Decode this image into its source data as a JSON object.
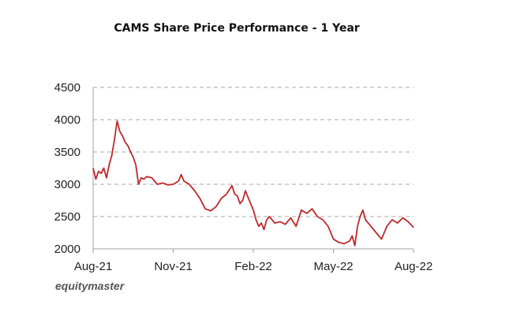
{
  "chart_data": {
    "type": "line",
    "title": "CAMS Share Price Performance - 1 Year",
    "xlabel": "",
    "ylabel": "",
    "ylim": [
      2000,
      4500
    ],
    "yticks": [
      "4500",
      "4000",
      "3500",
      "3000",
      "2500",
      "2000"
    ],
    "ytick_values": [
      4500,
      4000,
      3500,
      3000,
      2500,
      2000
    ],
    "xticks": [
      "Aug-21",
      "Nov-21",
      "Feb-22",
      "May-22",
      "Aug-22"
    ],
    "x_range": [
      0,
      12
    ],
    "grid": "horizontal dashed",
    "series": [
      {
        "name": "CAMS",
        "color": "#c0282a",
        "x": [
          0,
          0.1,
          0.2,
          0.3,
          0.4,
          0.5,
          0.6,
          0.7,
          0.8,
          0.9,
          1.0,
          1.1,
          1.2,
          1.3,
          1.4,
          1.5,
          1.6,
          1.7,
          1.8,
          1.9,
          2.0,
          2.2,
          2.4,
          2.6,
          2.8,
          3.0,
          3.2,
          3.3,
          3.4,
          3.6,
          3.8,
          4.0,
          4.2,
          4.4,
          4.6,
          4.8,
          5.0,
          5.2,
          5.3,
          5.4,
          5.5,
          5.6,
          5.7,
          5.8,
          6.0,
          6.1,
          6.2,
          6.3,
          6.4,
          6.5,
          6.6,
          6.8,
          7.0,
          7.2,
          7.4,
          7.6,
          7.8,
          8.0,
          8.2,
          8.4,
          8.6,
          8.8,
          9.0,
          9.2,
          9.4,
          9.6,
          9.7,
          9.8,
          9.9,
          10.0,
          10.1,
          10.2,
          10.4,
          10.6,
          10.8,
          11.0,
          11.2,
          11.4,
          11.6,
          11.8,
          12.0
        ],
        "values": [
          3250,
          3080,
          3200,
          3170,
          3250,
          3100,
          3300,
          3450,
          3700,
          3980,
          3820,
          3750,
          3650,
          3600,
          3500,
          3420,
          3300,
          3000,
          3100,
          3080,
          3120,
          3100,
          3000,
          3020,
          2990,
          3000,
          3050,
          3150,
          3050,
          3000,
          2900,
          2780,
          2620,
          2590,
          2650,
          2780,
          2850,
          2980,
          2850,
          2820,
          2700,
          2750,
          2900,
          2800,
          2600,
          2450,
          2350,
          2400,
          2300,
          2450,
          2500,
          2400,
          2420,
          2380,
          2480,
          2350,
          2600,
          2550,
          2620,
          2500,
          2450,
          2350,
          2150,
          2100,
          2080,
          2120,
          2200,
          2050,
          2350,
          2500,
          2600,
          2450,
          2350,
          2250,
          2150,
          2350,
          2450,
          2400,
          2480,
          2420,
          2330
        ]
      }
    ]
  },
  "footer": {
    "brand": "equitymaster"
  }
}
